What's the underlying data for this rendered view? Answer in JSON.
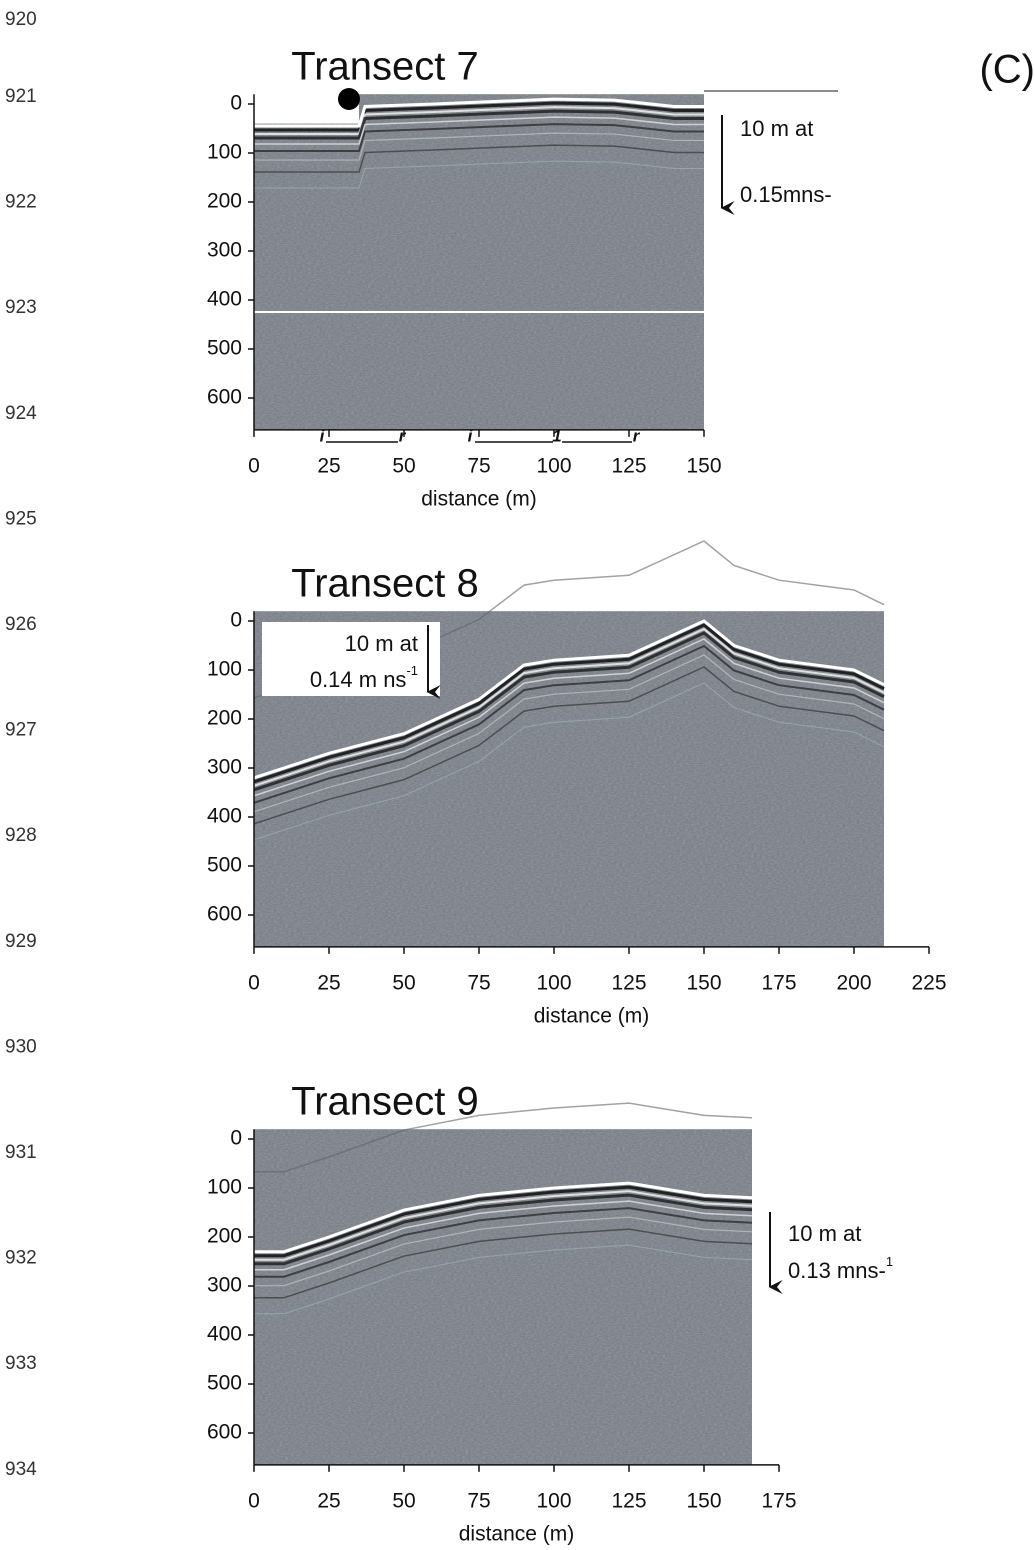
{
  "figure_label": "(C)",
  "elevation_labels": [
    "920",
    "921",
    "922",
    "923",
    "924",
    "925",
    "926",
    "927",
    "928",
    "929",
    "930",
    "931",
    "932",
    "933",
    "934"
  ],
  "chart_data": [
    {
      "type": "radargram",
      "title": "Transect 7",
      "xlabel": "distance (m)",
      "xlim": [
        0,
        150
      ],
      "xticks": [
        0,
        25,
        50,
        75,
        100,
        125,
        150
      ],
      "ylim": [
        -20,
        665
      ],
      "yticks": [
        0,
        100,
        200,
        300,
        400,
        500,
        600
      ],
      "x": [
        0,
        35,
        37,
        60,
        80,
        100,
        120,
        140,
        150
      ],
      "values": [
        45,
        45,
        5,
        0,
        -5,
        -10,
        -8,
        5,
        5
      ],
      "annotation": {
        "lines": [
          "10 m at",
          "0.15mns-"
        ]
      },
      "segment_labels": [
        "i",
        "r",
        "i",
        "1",
        "r"
      ]
    },
    {
      "type": "radargram",
      "title": "Transect 8",
      "xlabel": "distance (m)",
      "xlim": [
        0,
        225
      ],
      "xticks": [
        0,
        25,
        50,
        75,
        100,
        125,
        150,
        175,
        200,
        225
      ],
      "ylim": [
        -20,
        665
      ],
      "yticks": [
        0,
        100,
        200,
        300,
        400,
        500,
        600
      ],
      "x": [
        0,
        25,
        50,
        75,
        90,
        100,
        125,
        150,
        160,
        175,
        200,
        210
      ],
      "values": [
        320,
        270,
        230,
        160,
        90,
        80,
        70,
        0,
        50,
        80,
        100,
        130
      ],
      "annotation": {
        "lines": [
          "10 m at",
          "0.14 m ns"
        ],
        "superscript": "-1"
      }
    },
    {
      "type": "radargram",
      "title": "Transect 9",
      "xlabel": "distance (m)",
      "xlim": [
        0,
        175
      ],
      "xticks": [
        0,
        25,
        50,
        75,
        100,
        125,
        150,
        175
      ],
      "ylim": [
        -20,
        665
      ],
      "yticks": [
        0,
        100,
        200,
        300,
        400,
        500,
        600
      ],
      "x": [
        0,
        10,
        25,
        50,
        75,
        100,
        125,
        150,
        166
      ],
      "values": [
        230,
        230,
        200,
        145,
        115,
        100,
        90,
        115,
        120
      ],
      "annotation": {
        "lines": [
          "10 m at",
          "0.13 mns-"
        ],
        "superscript": "1"
      }
    }
  ]
}
